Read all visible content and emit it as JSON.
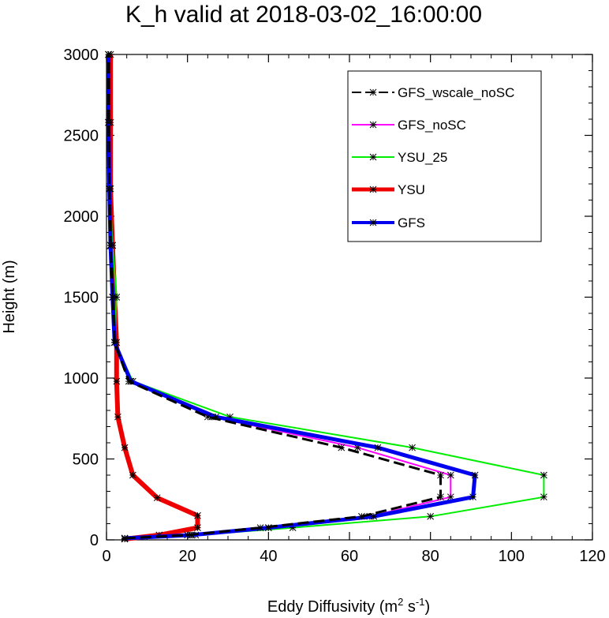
{
  "chart_data": {
    "type": "line",
    "title": "K_h valid at 2018-03-02_16:00:00",
    "xlabel": {
      "text": "Eddy Diffusivity (m",
      "sup1": "2",
      "mid": " s",
      "sup2": "-1",
      "end": ")"
    },
    "ylabel": "Height (m)",
    "xlim": [
      0,
      120
    ],
    "ylim": [
      0,
      3000
    ],
    "xticks": [
      0,
      20,
      40,
      60,
      80,
      100,
      120
    ],
    "yticks": [
      0,
      500,
      1000,
      1500,
      2000,
      2500,
      3000
    ],
    "grid": false,
    "legend_position": "top-right",
    "series": [
      {
        "name": "GFS_wscale_noSC",
        "color": "#000000",
        "dash": "dashed",
        "width": 3,
        "x": [
          4.5,
          20,
          38,
          63,
          82.5,
          82.5,
          58,
          25,
          5.5,
          2,
          1.5,
          1,
          0.7,
          0.5,
          0.5
        ],
        "y": [
          10,
          30,
          75,
          145,
          265,
          400,
          570,
          760,
          980,
          1220,
          1500,
          1820,
          2170,
          2580,
          3000
        ]
      },
      {
        "name": "GFS_noSC",
        "color": "#ff00ff",
        "dash": "solid",
        "width": 2,
        "x": [
          4.5,
          21,
          40,
          65,
          85,
          85,
          62,
          26,
          6,
          2,
          1.5,
          1,
          0.7,
          0.5,
          0.5
        ],
        "y": [
          10,
          30,
          75,
          145,
          265,
          400,
          570,
          760,
          980,
          1220,
          1500,
          1820,
          2170,
          2580,
          3000
        ]
      },
      {
        "name": "YSU_25",
        "color": "#00ee00",
        "dash": "solid",
        "width": 2,
        "x": [
          4.5,
          22,
          46,
          80,
          108,
          108,
          75.5,
          30.5,
          6.5,
          2,
          2.5,
          1.5,
          0.8,
          0.5,
          0.5
        ],
        "y": [
          10,
          30,
          75,
          145,
          265,
          400,
          570,
          760,
          980,
          1220,
          1500,
          1820,
          2170,
          2580,
          3000
        ]
      },
      {
        "name": "YSU",
        "color": "#ee0000",
        "dash": "solid",
        "width": 6,
        "x": [
          4.5,
          13,
          22.5,
          22.5,
          12.5,
          6.5,
          4.5,
          2.8,
          2.5,
          2.5,
          2,
          1.5,
          1,
          1,
          1
        ],
        "y": [
          5,
          30,
          75,
          150,
          260,
          400,
          570,
          760,
          980,
          1220,
          1500,
          1820,
          2170,
          2580,
          3000
        ]
      },
      {
        "name": "GFS",
        "color": "#0000ee",
        "dash": "solid",
        "width": 5,
        "x": [
          4.5,
          21,
          40,
          66,
          90.5,
          91,
          67,
          27,
          6,
          2,
          1.5,
          1,
          0.7,
          0.5,
          0.5
        ],
        "y": [
          10,
          30,
          75,
          145,
          265,
          400,
          570,
          760,
          980,
          1220,
          1500,
          1820,
          2170,
          2580,
          3000
        ]
      }
    ]
  }
}
